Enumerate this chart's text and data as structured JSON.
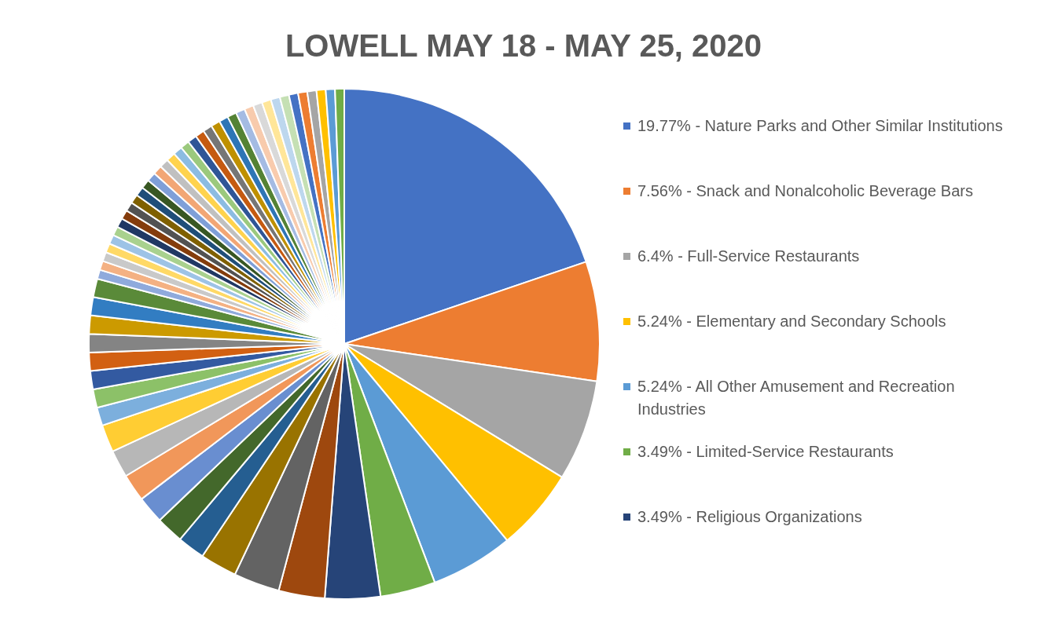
{
  "chart_data": {
    "type": "pie",
    "title": "LOWELL MAY 18 - MAY 25, 2020",
    "legend": "right",
    "categories": [
      "19.77% - Nature Parks and Other Similar Institutions",
      "7.56% - Snack and Nonalcoholic Beverage Bars",
      "6.4% - Full-Service Restaurants",
      "5.24% - Elementary and Secondary Schools",
      "5.24% - All Other Amusement and Recreation Industries",
      "3.49% - Limited-Service Restaurants",
      "3.49% - Religious Organizations",
      null,
      null,
      null,
      null,
      null,
      null,
      null,
      null,
      null,
      null,
      null,
      null,
      null,
      null,
      null,
      null,
      null,
      null,
      null,
      null,
      null,
      null,
      null,
      null,
      null,
      null,
      null,
      null,
      null,
      null,
      null,
      null,
      null,
      null,
      null,
      null,
      null,
      null,
      null,
      null,
      null,
      null,
      null,
      null,
      null,
      null,
      null,
      null,
      null,
      null,
      null,
      null,
      null
    ],
    "values": [
      19.77,
      7.56,
      6.4,
      5.24,
      5.24,
      3.49,
      3.49,
      2.91,
      2.91,
      2.33,
      1.74,
      1.74,
      1.74,
      1.74,
      1.74,
      1.74,
      1.16,
      1.16,
      1.16,
      1.16,
      1.16,
      1.16,
      1.16,
      1.16,
      0.58,
      0.58,
      0.58,
      0.58,
      0.58,
      0.58,
      0.58,
      0.58,
      0.58,
      0.58,
      0.58,
      0.58,
      0.58,
      0.58,
      0.58,
      0.58,
      0.58,
      0.58,
      0.58,
      0.58,
      0.58,
      0.58,
      0.58,
      0.58,
      0.58,
      0.58,
      0.58,
      0.58,
      0.58,
      0.58,
      0.58,
      0.58,
      0.58,
      0.58,
      0.58,
      0.58
    ],
    "colors": [
      "#4472c4",
      "#ed7d31",
      "#a5a5a5",
      "#ffc000",
      "#5b9bd5",
      "#70ad47",
      "#264478",
      "#9e480e",
      "#636363",
      "#997300",
      "#255e91",
      "#43682b",
      "#698ed0",
      "#f1975a",
      "#b7b7b7",
      "#ffcd33",
      "#7cafdd",
      "#8cc168",
      "#335aa1",
      "#d26012",
      "#848484",
      "#cc9a00",
      "#327dc2",
      "#5a8a39",
      "#8faadc",
      "#f4b183",
      "#c9c9c9",
      "#ffd966",
      "#9dc3e6",
      "#a9d18e",
      "#203864",
      "#843c0c",
      "#525252",
      "#7f6000",
      "#1f4e79",
      "#385723",
      "#7f9fd8",
      "#f2a675",
      "#c0c0c0",
      "#ffd34d",
      "#8cbce2",
      "#9bc97d",
      "#2f5597",
      "#c55a11",
      "#767676",
      "#bf9000",
      "#2e75b6",
      "#548235",
      "#a4bbe3",
      "#f8cbad",
      "#d9d9d9",
      "#ffe699",
      "#bdd7ee",
      "#c5e0b4",
      "#4472c4",
      "#ed7d31",
      "#a5a5a5",
      "#ffc000",
      "#5b9bd5",
      "#70ad47"
    ]
  }
}
